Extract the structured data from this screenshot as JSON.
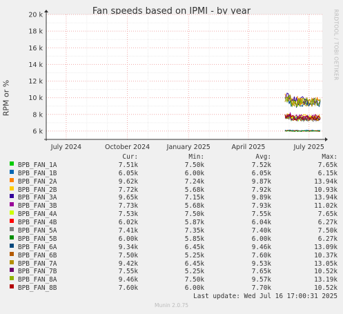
{
  "title": "Fan speeds based on IPMI - by year",
  "ylabel": "RPM or %",
  "side_label": "RRDTOOL / TOBI OETIKER",
  "version": "Munin 2.0.75",
  "chart_data": {
    "type": "line",
    "title": "Fan speeds based on IPMI - by year",
    "ylabel": "RPM or %",
    "xlabel": "",
    "ylim": [
      5000,
      20000
    ],
    "yticks": [
      6000,
      8000,
      10000,
      12000,
      14000,
      16000,
      18000,
      20000
    ],
    "ytick_labels": [
      "6 k",
      "8 k",
      "10 k",
      "12 k",
      "14 k",
      "16 k",
      "18 k",
      "20 k"
    ],
    "xlim": [
      "2024-06-01",
      "2025-07-21"
    ],
    "xticks": [
      "2024-07-01",
      "2024-10-01",
      "2025-01-01",
      "2025-04-01",
      "2025-07-01"
    ],
    "xtick_labels": [
      "July 2024",
      "October 2024",
      "January 2025",
      "April 2025",
      "July 2025"
    ],
    "grid": true,
    "data_start": "2025-05-26",
    "series": [
      {
        "name": "BPB_FAN_1A",
        "color": "#00cc00",
        "level": 7510
      },
      {
        "name": "BPB_FAN_1B",
        "color": "#0066b3",
        "level": 6050
      },
      {
        "name": "BPB_FAN_2A",
        "color": "#ff8000",
        "level": 9620
      },
      {
        "name": "BPB_FAN_2B",
        "color": "#ffcc00",
        "level": 7720
      },
      {
        "name": "BPB_FAN_3A",
        "color": "#330099",
        "level": 9650
      },
      {
        "name": "BPB_FAN_3B",
        "color": "#990099",
        "level": 7730
      },
      {
        "name": "BPB_FAN_4A",
        "color": "#ccff00",
        "level": 7530
      },
      {
        "name": "BPB_FAN_4B",
        "color": "#ff0000",
        "level": 6020
      },
      {
        "name": "BPB_FAN_5A",
        "color": "#808080",
        "level": 7410
      },
      {
        "name": "BPB_FAN_5B",
        "color": "#008f00",
        "level": 6000
      },
      {
        "name": "BPB_FAN_6A",
        "color": "#00487d",
        "level": 9340
      },
      {
        "name": "BPB_FAN_6B",
        "color": "#b35a00",
        "level": 7500
      },
      {
        "name": "BPB_FAN_7A",
        "color": "#b38f00",
        "level": 9420
      },
      {
        "name": "BPB_FAN_7B",
        "color": "#6b006b",
        "level": 7550
      },
      {
        "name": "BPB_FAN_8A",
        "color": "#8fb300",
        "level": 9460
      },
      {
        "name": "BPB_FAN_8B",
        "color": "#b30000",
        "level": 7600
      }
    ]
  },
  "legend": {
    "headers": {
      "cur": "Cur:",
      "min": "Min:",
      "avg": "Avg:",
      "max": "Max:"
    },
    "rows": [
      {
        "name": "BPB_FAN_1A",
        "color": "#00cc00",
        "cur": "7.51k",
        "min": "7.50k",
        "avg": "7.52k",
        "max": "7.65k"
      },
      {
        "name": "BPB_FAN_1B",
        "color": "#0066b3",
        "cur": "6.05k",
        "min": "6.00k",
        "avg": "6.05k",
        "max": "6.15k"
      },
      {
        "name": "BPB_FAN_2A",
        "color": "#ff8000",
        "cur": "9.62k",
        "min": "7.24k",
        "avg": "9.87k",
        "max": "13.94k"
      },
      {
        "name": "BPB_FAN_2B",
        "color": "#ffcc00",
        "cur": "7.72k",
        "min": "5.68k",
        "avg": "7.92k",
        "max": "10.93k"
      },
      {
        "name": "BPB_FAN_3A",
        "color": "#330099",
        "cur": "9.65k",
        "min": "7.15k",
        "avg": "9.89k",
        "max": "13.94k"
      },
      {
        "name": "BPB_FAN_3B",
        "color": "#990099",
        "cur": "7.73k",
        "min": "5.68k",
        "avg": "7.93k",
        "max": "11.02k"
      },
      {
        "name": "BPB_FAN_4A",
        "color": "#ccff00",
        "cur": "7.53k",
        "min": "7.50k",
        "avg": "7.55k",
        "max": "7.65k"
      },
      {
        "name": "BPB_FAN_4B",
        "color": "#ff0000",
        "cur": "6.02k",
        "min": "5.87k",
        "avg": "6.04k",
        "max": "6.27k"
      },
      {
        "name": "BPB_FAN_5A",
        "color": "#808080",
        "cur": "7.41k",
        "min": "7.35k",
        "avg": "7.40k",
        "max": "7.50k"
      },
      {
        "name": "BPB_FAN_5B",
        "color": "#008f00",
        "cur": "6.00k",
        "min": "5.85k",
        "avg": "6.00k",
        "max": "6.27k"
      },
      {
        "name": "BPB_FAN_6A",
        "color": "#00487d",
        "cur": "9.34k",
        "min": "6.45k",
        "avg": "9.46k",
        "max": "13.09k"
      },
      {
        "name": "BPB_FAN_6B",
        "color": "#b35a00",
        "cur": "7.50k",
        "min": "5.25k",
        "avg": "7.60k",
        "max": "10.37k"
      },
      {
        "name": "BPB_FAN_7A",
        "color": "#b38f00",
        "cur": "9.42k",
        "min": "6.45k",
        "avg": "9.53k",
        "max": "13.05k"
      },
      {
        "name": "BPB_FAN_7B",
        "color": "#6b006b",
        "cur": "7.55k",
        "min": "5.25k",
        "avg": "7.65k",
        "max": "10.52k"
      },
      {
        "name": "BPB_FAN_8A",
        "color": "#8fb300",
        "cur": "9.46k",
        "min": "7.50k",
        "avg": "9.57k",
        "max": "13.19k"
      },
      {
        "name": "BPB_FAN_8B",
        "color": "#b30000",
        "cur": "7.60k",
        "min": "6.00k",
        "avg": "7.70k",
        "max": "10.52k"
      }
    ],
    "last_update": "Last update: Wed Jul 16 17:00:31 2025"
  }
}
